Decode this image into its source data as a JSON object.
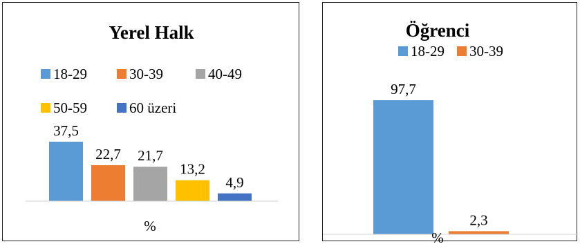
{
  "chart_data": [
    {
      "type": "bar",
      "title": "Yerel Halk",
      "xlabel": "%",
      "ylabel": "",
      "categories": [
        "18-29",
        "30-39",
        "40-49",
        "50-59",
        "60 üzeri"
      ],
      "values": [
        37.5,
        22.7,
        21.7,
        13.2,
        4.9
      ],
      "value_labels": [
        "37,5",
        "22,7",
        "21,7",
        "13,2",
        "4,9"
      ],
      "colors": [
        "#5B9BD5",
        "#ED7D31",
        "#A5A5A5",
        "#FFC000",
        "#4472C4"
      ],
      "legend": [
        "18-29",
        "30-39",
        "40-49",
        "50-59",
        "60 üzeri"
      ],
      "legend_position": "top",
      "grid": false
    },
    {
      "type": "bar",
      "title": "Öğrenci",
      "xlabel": "%",
      "ylabel": "",
      "categories": [
        "18-29",
        "30-39"
      ],
      "values": [
        97.7,
        2.3
      ],
      "value_labels": [
        "97,7",
        "2,3"
      ],
      "colors": [
        "#5B9BD5",
        "#ED7D31"
      ],
      "legend": [
        "18-29",
        "30-39"
      ],
      "legend_position": "top",
      "grid": false
    }
  ]
}
